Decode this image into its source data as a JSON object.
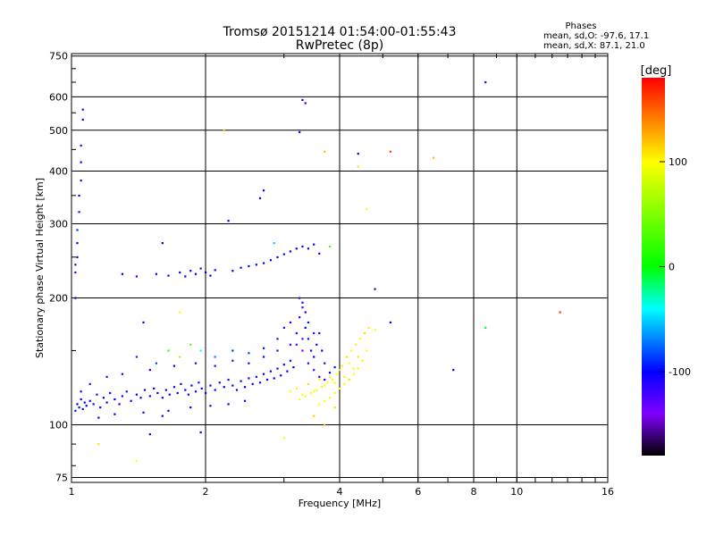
{
  "chart_data": {
    "type": "scatter",
    "title": "Tromsø 20151214 01:54:00-01:55:43",
    "subtitle": "RwPretec (8p)",
    "xlabel": "Frequency [MHz]",
    "ylabel": "Stationary phase Virtual Height [km]",
    "x_scale": "log",
    "y_scale": "log",
    "xlim": [
      1,
      16
    ],
    "ylim": [
      73,
      760
    ],
    "x_ticks": [
      1,
      2,
      4,
      6,
      8,
      10,
      16
    ],
    "y_ticks": [
      75,
      100,
      200,
      300,
      400,
      500,
      600,
      750
    ],
    "grid": true,
    "legend": {
      "title": "Phases",
      "lines": [
        "mean, sd,O: -97.6, 17.1",
        "mean, sd,X:  87.1, 21.0"
      ],
      "placement": "top-right"
    },
    "colorbar": {
      "label": "[deg]",
      "min": -180,
      "max": 180,
      "ticks": [
        100,
        0,
        -100
      ],
      "colors": [
        "#ff0000",
        "#ff8000",
        "#ffff00",
        "#00ff00",
        "#00ffff",
        "#0000ff",
        "#8000ff",
        "#000000"
      ]
    },
    "color_legend": {
      "blue_dots": -100,
      "yellow_dots": 100
    },
    "series": [
      {
        "points": [
          [
            1.02,
            108,
            -95
          ],
          [
            1.03,
            112,
            -100
          ],
          [
            1.04,
            110,
            -98
          ],
          [
            1.05,
            115,
            -102
          ],
          [
            1.06,
            109,
            -97
          ],
          [
            1.07,
            113,
            -100
          ],
          [
            1.08,
            111,
            -99
          ],
          [
            1.1,
            114,
            -101
          ],
          [
            1.12,
            112,
            -98
          ],
          [
            1.14,
            118,
            -96
          ],
          [
            1.16,
            110,
            -103
          ],
          [
            1.18,
            116,
            -100
          ],
          [
            1.2,
            113,
            -99
          ],
          [
            1.22,
            119,
            -97
          ],
          [
            1.25,
            115,
            -101
          ],
          [
            1.28,
            112,
            -100
          ],
          [
            1.3,
            117,
            -98
          ],
          [
            1.33,
            120,
            -95
          ],
          [
            1.36,
            114,
            -100
          ],
          [
            1.4,
            118,
            -102
          ],
          [
            1.43,
            116,
            -99
          ],
          [
            1.46,
            121,
            -100
          ],
          [
            1.5,
            117,
            -97
          ],
          [
            1.53,
            122,
            -100
          ],
          [
            1.56,
            119,
            -98
          ],
          [
            1.6,
            116,
            -101
          ],
          [
            1.63,
            121,
            -100
          ],
          [
            1.66,
            118,
            -99
          ],
          [
            1.7,
            123,
            -96
          ],
          [
            1.73,
            119,
            -100
          ],
          [
            1.76,
            125,
            -98
          ],
          [
            1.8,
            121,
            -102
          ],
          [
            1.83,
            118,
            -100
          ],
          [
            1.86,
            124,
            -99
          ],
          [
            1.9,
            120,
            -100
          ],
          [
            1.93,
            126,
            -97
          ],
          [
            1.96,
            122,
            -100
          ],
          [
            2.0,
            119,
            -101
          ],
          [
            2.05,
            124,
            -98
          ],
          [
            2.1,
            121,
            -100
          ],
          [
            2.15,
            126,
            -99
          ],
          [
            2.2,
            123,
            -100
          ],
          [
            2.25,
            128,
            -97
          ],
          [
            2.3,
            124,
            -100
          ],
          [
            2.35,
            121,
            -102
          ],
          [
            2.4,
            127,
            -99
          ],
          [
            2.45,
            123,
            -100
          ],
          [
            2.5,
            129,
            -98
          ],
          [
            2.55,
            125,
            -100
          ],
          [
            2.6,
            130,
            -96
          ],
          [
            2.65,
            126,
            -100
          ],
          [
            2.7,
            132,
            -99
          ],
          [
            2.75,
            128,
            -101
          ],
          [
            2.8,
            134,
            -100
          ],
          [
            2.85,
            129,
            -98
          ],
          [
            2.9,
            136,
            -100
          ],
          [
            2.95,
            131,
            -99
          ],
          [
            3.0,
            139,
            -102
          ],
          [
            3.05,
            134,
            -100
          ],
          [
            3.1,
            142,
            -98
          ],
          [
            3.15,
            137,
            -100
          ],
          [
            1.4,
            145,
            -90
          ],
          [
            1.55,
            140,
            -80
          ],
          [
            1.65,
            150,
            20
          ],
          [
            1.75,
            145,
            60
          ],
          [
            1.85,
            155,
            40
          ],
          [
            1.95,
            150,
            -40
          ],
          [
            2.1,
            145,
            -70
          ],
          [
            2.3,
            150,
            -90
          ],
          [
            2.5,
            148,
            -85
          ],
          [
            2.7,
            152,
            -95
          ],
          [
            2.9,
            160,
            -110
          ],
          [
            3.0,
            170,
            -120
          ],
          [
            3.1,
            175,
            -105
          ],
          [
            3.2,
            165,
            -110
          ],
          [
            3.25,
            180,
            -115
          ],
          [
            3.3,
            190,
            -120
          ],
          [
            3.35,
            170,
            -100
          ],
          [
            3.4,
            160,
            -95
          ],
          [
            3.45,
            150,
            -110
          ],
          [
            3.5,
            145,
            -100
          ],
          [
            3.55,
            155,
            -105
          ],
          [
            3.6,
            165,
            -110
          ],
          [
            3.65,
            150,
            -100
          ],
          [
            3.7,
            140,
            -95
          ],
          [
            3.25,
            200,
            -110
          ],
          [
            3.3,
            195,
            -105
          ],
          [
            3.35,
            185,
            -100
          ],
          [
            3.4,
            175,
            -95
          ],
          [
            3.2,
            155,
            -130
          ],
          [
            3.3,
            150,
            -140
          ],
          [
            3.4,
            140,
            -120
          ],
          [
            3.5,
            135,
            -125
          ],
          [
            3.6,
            130,
            -110
          ],
          [
            3.7,
            128,
            -105
          ],
          [
            3.8,
            133,
            -100
          ],
          [
            3.9,
            137,
            -95
          ],
          [
            1.05,
            120,
            -110
          ],
          [
            1.1,
            125,
            -120
          ],
          [
            1.2,
            130,
            -115
          ],
          [
            1.3,
            132,
            -110
          ],
          [
            1.5,
            135,
            -105
          ],
          [
            1.7,
            138,
            -100
          ],
          [
            1.9,
            140,
            -110
          ],
          [
            2.1,
            138,
            -115
          ],
          [
            2.3,
            142,
            -120
          ],
          [
            2.5,
            140,
            -110
          ],
          [
            2.7,
            145,
            -105
          ],
          [
            2.9,
            150,
            -115
          ],
          [
            3.1,
            155,
            -120
          ],
          [
            3.3,
            160,
            -125
          ],
          [
            3.5,
            165,
            -120
          ],
          [
            1.15,
            104,
            -100
          ],
          [
            1.25,
            106,
            -102
          ],
          [
            1.45,
            107,
            -98
          ],
          [
            1.65,
            108,
            -100
          ],
          [
            1.85,
            110,
            -99
          ],
          [
            2.05,
            111,
            -101
          ],
          [
            2.25,
            112,
            -100
          ],
          [
            2.45,
            114,
            -98
          ],
          [
            3.1,
            120,
            100
          ],
          [
            3.2,
            122,
            105
          ],
          [
            3.3,
            118,
            95
          ],
          [
            3.4,
            125,
            110
          ],
          [
            3.5,
            120,
            100
          ],
          [
            3.6,
            128,
            105
          ],
          [
            3.7,
            124,
            98
          ],
          [
            3.8,
            130,
            102
          ],
          [
            3.9,
            126,
            100
          ],
          [
            4.0,
            135,
            110
          ],
          [
            4.1,
            130,
            105
          ],
          [
            4.2,
            140,
            100
          ],
          [
            4.3,
            136,
            95
          ],
          [
            4.4,
            145,
            110
          ],
          [
            4.5,
            142,
            105
          ],
          [
            4.6,
            150,
            100
          ],
          [
            3.25,
            115,
            100
          ],
          [
            3.35,
            117,
            98
          ],
          [
            3.45,
            119,
            102
          ],
          [
            3.55,
            121,
            100
          ],
          [
            3.65,
            123,
            105
          ],
          [
            3.75,
            126,
            100
          ],
          [
            3.85,
            128,
            95
          ],
          [
            3.95,
            132,
            100
          ],
          [
            4.05,
            138,
            105
          ],
          [
            4.15,
            145,
            110
          ],
          [
            4.25,
            150,
            100
          ],
          [
            4.35,
            155,
            105
          ],
          [
            4.45,
            160,
            100
          ],
          [
            4.55,
            165,
            110
          ],
          [
            4.65,
            170,
            105
          ],
          [
            3.6,
            112,
            100
          ],
          [
            3.7,
            114,
            98
          ],
          [
            3.8,
            116,
            102
          ],
          [
            3.9,
            119,
            100
          ],
          [
            4.0,
            122,
            105
          ],
          [
            4.1,
            125,
            100
          ],
          [
            4.2,
            128,
            110
          ],
          [
            4.3,
            132,
            100
          ],
          [
            4.4,
            136,
            95
          ],
          [
            3.7,
            100,
            120
          ],
          [
            3.5,
            105,
            115
          ],
          [
            3.9,
            110,
            110
          ],
          [
            1.02,
            200,
            -100
          ],
          [
            1.02,
            230,
            -110
          ],
          [
            1.03,
            270,
            -100
          ],
          [
            1.03,
            290,
            -90
          ],
          [
            1.04,
            320,
            -95
          ],
          [
            1.04,
            350,
            -100
          ],
          [
            1.05,
            380,
            -105
          ],
          [
            1.05,
            420,
            -100
          ],
          [
            1.05,
            460,
            -95
          ],
          [
            1.06,
            530,
            -100
          ],
          [
            1.06,
            560,
            -110
          ],
          [
            1.03,
            250,
            -100
          ],
          [
            1.02,
            240,
            -110
          ],
          [
            1.55,
            228,
            -100
          ],
          [
            1.65,
            226,
            -98
          ],
          [
            1.75,
            230,
            -102
          ],
          [
            1.8,
            225,
            -100
          ],
          [
            1.85,
            232,
            -99
          ],
          [
            1.9,
            228,
            -100
          ],
          [
            1.95,
            235,
            -97
          ],
          [
            2.0,
            230,
            -100
          ],
          [
            2.05,
            226,
            -101
          ],
          [
            2.1,
            233,
            -98
          ],
          [
            2.3,
            232,
            -100
          ],
          [
            2.4,
            236,
            -99
          ],
          [
            2.5,
            238,
            -100
          ],
          [
            2.6,
            240,
            -98
          ],
          [
            2.7,
            242,
            -100
          ],
          [
            2.8,
            246,
            -97
          ],
          [
            2.9,
            250,
            -100
          ],
          [
            3.0,
            254,
            -99
          ],
          [
            3.1,
            258,
            -101
          ],
          [
            3.2,
            262,
            -100
          ],
          [
            3.3,
            265,
            -98
          ],
          [
            3.4,
            262,
            -100
          ],
          [
            3.5,
            268,
            -99
          ],
          [
            3.6,
            255,
            -100
          ],
          [
            1.3,
            228,
            -100
          ],
          [
            1.4,
            225,
            -110
          ],
          [
            1.6,
            270,
            -100
          ],
          [
            2.25,
            305,
            -100
          ],
          [
            2.65,
            345,
            -100
          ],
          [
            2.7,
            360,
            -105
          ],
          [
            2.85,
            270,
            -50
          ],
          [
            3.3,
            590,
            -100
          ],
          [
            3.35,
            580,
            -110
          ],
          [
            3.25,
            495,
            -100
          ],
          [
            4.4,
            440,
            -100
          ],
          [
            4.6,
            325,
            100
          ],
          [
            4.8,
            210,
            -100
          ],
          [
            3.7,
            445,
            120
          ],
          [
            5.2,
            445,
            160
          ],
          [
            4.4,
            410,
            110
          ],
          [
            6.5,
            430,
            120
          ],
          [
            8.5,
            650,
            -110
          ],
          [
            8.5,
            170,
            -10
          ],
          [
            12.5,
            185,
            160
          ],
          [
            7.2,
            135,
            -100
          ],
          [
            1.15,
            90,
            110
          ],
          [
            1.4,
            82,
            100
          ],
          [
            1.5,
            95,
            -100
          ],
          [
            1.95,
            96,
            -100
          ],
          [
            1.6,
            105,
            -100
          ],
          [
            1.75,
            185,
            100
          ],
          [
            1.45,
            175,
            -100
          ],
          [
            2.2,
            500,
            120
          ],
          [
            3.0,
            93,
            100
          ],
          [
            4.8,
            168,
            100
          ],
          [
            5.2,
            175,
            -100
          ],
          [
            3.8,
            265,
            30
          ]
        ]
      }
    ]
  }
}
